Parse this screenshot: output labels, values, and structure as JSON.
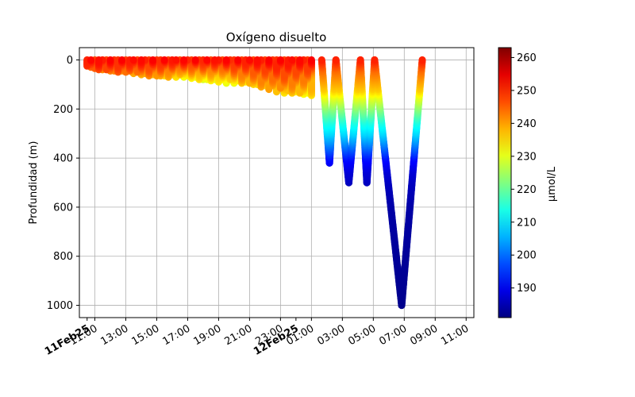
{
  "chart_data": {
    "type": "scatter",
    "title": "Oxígeno disuelto",
    "ylabel": "Profundidad (m)",
    "xlabel": "",
    "colorbar_label": "μmol/L",
    "colormap": "jet",
    "color_range": [
      181,
      263
    ],
    "colorbar_ticks": [
      190,
      200,
      210,
      220,
      230,
      240,
      250,
      260
    ],
    "x_range": [
      "2025-02-11 10:00",
      "2025-02-12 11:30"
    ],
    "y_range": [
      1050,
      -50
    ],
    "y_inverted": true,
    "y_ticks": [
      0,
      200,
      400,
      600,
      800,
      1000
    ],
    "x_ticks": [
      {
        "time": "2025-02-11 10:30",
        "label": "11Feb25",
        "bold": true
      },
      {
        "time": "2025-02-11 11:00",
        "label": "11:00",
        "bold": false
      },
      {
        "time": "2025-02-11 13:00",
        "label": "13:00",
        "bold": false
      },
      {
        "time": "2025-02-11 15:00",
        "label": "15:00",
        "bold": false
      },
      {
        "time": "2025-02-11 17:00",
        "label": "17:00",
        "bold": false
      },
      {
        "time": "2025-02-11 19:00",
        "label": "19:00",
        "bold": false
      },
      {
        "time": "2025-02-11 21:00",
        "label": "21:00",
        "bold": false
      },
      {
        "time": "2025-02-11 23:00",
        "label": "23:00",
        "bold": false
      },
      {
        "time": "2025-02-12 00:00",
        "label": "12Feb25",
        "bold": true
      },
      {
        "time": "2025-02-12 01:00",
        "label": "01:00",
        "bold": false
      },
      {
        "time": "2025-02-12 03:00",
        "label": "03:00",
        "bold": false
      },
      {
        "time": "2025-02-12 05:00",
        "label": "05:00",
        "bold": false
      },
      {
        "time": "2025-02-12 07:00",
        "label": "07:00",
        "bold": false
      },
      {
        "time": "2025-02-12 09:00",
        "label": "09:00",
        "bold": false
      },
      {
        "time": "2025-02-12 11:00",
        "label": "11:00",
        "bold": false
      }
    ],
    "grid": true,
    "shallow_profiles": {
      "time_start": "2025-02-11 10:30",
      "time_end": "2025-02-12 01:00",
      "interval_minutes": 15,
      "max_depth_profile": [
        [
          "2025-02-11 10:30",
          30
        ],
        [
          "2025-02-11 11:00",
          40
        ],
        [
          "2025-02-11 13:00",
          55
        ],
        [
          "2025-02-11 15:00",
          70
        ],
        [
          "2025-02-11 17:00",
          75
        ],
        [
          "2025-02-11 19:00",
          95
        ],
        [
          "2025-02-11 21:00",
          100
        ],
        [
          "2025-02-11 23:00",
          135
        ],
        [
          "2025-02-12 01:00",
          150
        ]
      ],
      "surface_oxygen": 250,
      "bottom_oxygen_profile": [
        [
          "2025-02-11 10:30",
          246
        ],
        [
          "2025-02-11 13:00",
          242
        ],
        [
          "2025-02-11 15:00",
          238
        ],
        [
          "2025-02-11 17:00",
          232
        ],
        [
          "2025-02-11 19:00",
          230
        ],
        [
          "2025-02-11 21:00",
          236
        ],
        [
          "2025-02-11 23:00",
          238
        ],
        [
          "2025-02-12 01:00",
          232
        ]
      ]
    },
    "deep_profiles": [
      {
        "start": "2025-02-12 01:40",
        "bottom": "2025-02-12 02:10",
        "end": "2025-02-12 02:35",
        "max_depth": 420
      },
      {
        "start": "2025-02-12 02:35",
        "bottom": "2025-02-12 03:25",
        "end": "2025-02-12 04:10",
        "max_depth": 500
      },
      {
        "start": "2025-02-12 04:10",
        "bottom": "2025-02-12 04:35",
        "end": "2025-02-12 05:05",
        "max_depth": 500
      },
      {
        "start": "2025-02-12 05:05",
        "bottom": "2025-02-12 06:50",
        "end": "2025-02-12 08:10",
        "max_depth": 1000
      }
    ],
    "oxygen_depth_profile": [
      [
        0,
        250
      ],
      [
        40,
        244
      ],
      [
        80,
        240
      ],
      [
        120,
        236
      ],
      [
        150,
        230
      ],
      [
        200,
        222
      ],
      [
        250,
        214
      ],
      [
        300,
        208
      ],
      [
        350,
        200
      ],
      [
        400,
        192
      ],
      [
        450,
        188
      ],
      [
        500,
        186
      ],
      [
        600,
        184
      ],
      [
        800,
        183
      ],
      [
        1000,
        182
      ]
    ]
  }
}
